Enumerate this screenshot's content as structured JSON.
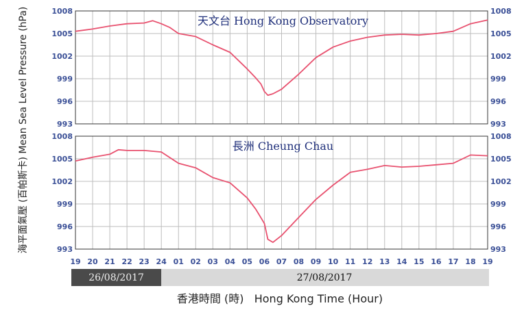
{
  "chart_data": {
    "type": "line",
    "ylabel": "海平面氣壓 (百帕斯卡) Mean Sea Level Pressure (hPa)",
    "xlabel": "香港時間 (時)   Hong Kong Time (Hour)",
    "ylim": [
      993,
      1008
    ],
    "yticks": [
      "993",
      "996",
      "999",
      "1002",
      "1005",
      "1008"
    ],
    "xticks": [
      "19",
      "20",
      "21",
      "22",
      "23",
      "24",
      "01",
      "02",
      "03",
      "04",
      "05",
      "06",
      "07",
      "08",
      "09",
      "10",
      "11",
      "12",
      "13",
      "14",
      "15",
      "16",
      "17",
      "18",
      "19"
    ],
    "grid": true,
    "dates": [
      "26/08/2017",
      "27/08/2017"
    ],
    "line_color": "#e8506e",
    "panels": [
      {
        "title": "天文台  Hong Kong Observatory",
        "series": [
          {
            "x": [
              0,
              1,
              2,
              3,
              4,
              4.5,
              5,
              5.5,
              6,
              7,
              8,
              9,
              10,
              10.5,
              10.8,
              11,
              11.2,
              11.5,
              12,
              13,
              14,
              15,
              16,
              17,
              18,
              19,
              20,
              21,
              22,
              23,
              24
            ],
            "values": [
              1005.3,
              1005.6,
              1006.0,
              1006.3,
              1006.4,
              1006.7,
              1006.3,
              1005.8,
              1005.0,
              1004.6,
              1003.5,
              1002.5,
              1000.3,
              999.1,
              998.3,
              997.3,
              996.8,
              997.0,
              997.6,
              999.6,
              1001.8,
              1003.2,
              1004.0,
              1004.5,
              1004.8,
              1004.9,
              1004.8,
              1005.0,
              1005.3,
              1006.3,
              1006.8
            ]
          }
        ]
      },
      {
        "title": "長洲  Cheung Chau",
        "series": [
          {
            "x": [
              0,
              1,
              2,
              2.5,
              3,
              4,
              5,
              6,
              7,
              8,
              9,
              10,
              10.5,
              11,
              11.2,
              11.5,
              12,
              13,
              14,
              15,
              16,
              17,
              18,
              19,
              20,
              21,
              22,
              23,
              24
            ],
            "values": [
              1004.7,
              1005.2,
              1005.6,
              1006.2,
              1006.1,
              1006.1,
              1005.9,
              1004.4,
              1003.8,
              1002.5,
              1001.8,
              999.8,
              998.3,
              996.4,
              994.3,
              993.9,
              994.8,
              997.2,
              999.6,
              1001.5,
              1003.2,
              1003.6,
              1004.1,
              1003.9,
              1004.0,
              1004.2,
              1004.4,
              1005.5,
              1005.4
            ]
          }
        ]
      }
    ]
  }
}
